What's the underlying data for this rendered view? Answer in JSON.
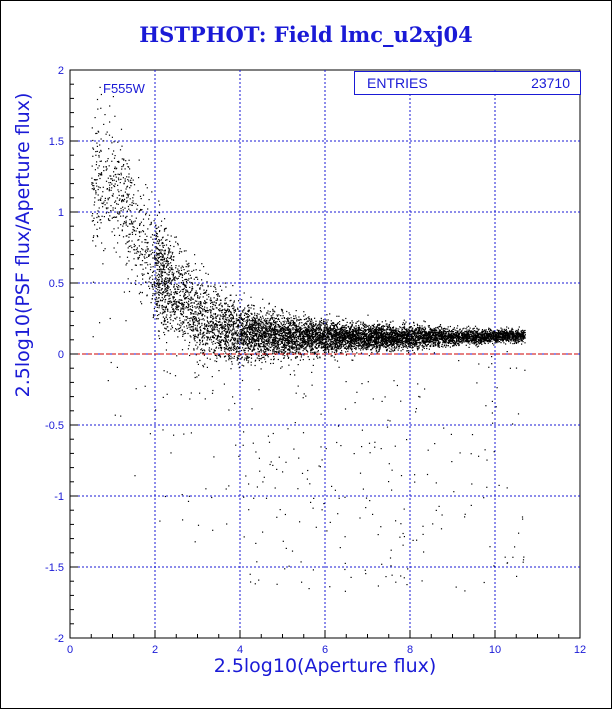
{
  "chart_data": {
    "type": "scatter",
    "title": "HSTPHOT: Field lmc_u2xj04",
    "xlabel": "2.5log10(Aperture flux)",
    "ylabel": "2.5log10(PSF flux/Aperture flux)",
    "xlim": [
      0,
      12
    ],
    "ylim": [
      -2,
      2
    ],
    "x_ticks": [
      0,
      2,
      4,
      6,
      8,
      10,
      12
    ],
    "y_ticks": [
      -2,
      -1.5,
      -1,
      -0.5,
      0,
      0.5,
      1,
      1.5,
      2
    ],
    "grid": true,
    "reference_line": {
      "y": 0,
      "color": "#cc0000",
      "style": "dashed"
    },
    "filter_label": "F555W",
    "stats": {
      "label": "ENTRIES",
      "value": "23710",
      "entries": 23710
    },
    "distribution": {
      "description_points": [
        {
          "x": 1.0,
          "y_center": 1.2,
          "y_spread": 0.5
        },
        {
          "x": 2.0,
          "y_center": 0.6,
          "y_spread": 0.45
        },
        {
          "x": 3.0,
          "y_center": 0.25,
          "y_spread": 0.35
        },
        {
          "x": 4.0,
          "y_center": 0.15,
          "y_spread": 0.22
        },
        {
          "x": 6.0,
          "y_center": 0.12,
          "y_spread": 0.13
        },
        {
          "x": 8.0,
          "y_center": 0.12,
          "y_spread": 0.09
        },
        {
          "x": 10.0,
          "y_center": 0.13,
          "y_spread": 0.05
        }
      ],
      "x_range": [
        0.5,
        10.7
      ]
    },
    "colors": {
      "axis": "#1a1ad6",
      "points": "#000000",
      "ref_line": "#cc0000",
      "title": "#1a1ad6"
    }
  }
}
